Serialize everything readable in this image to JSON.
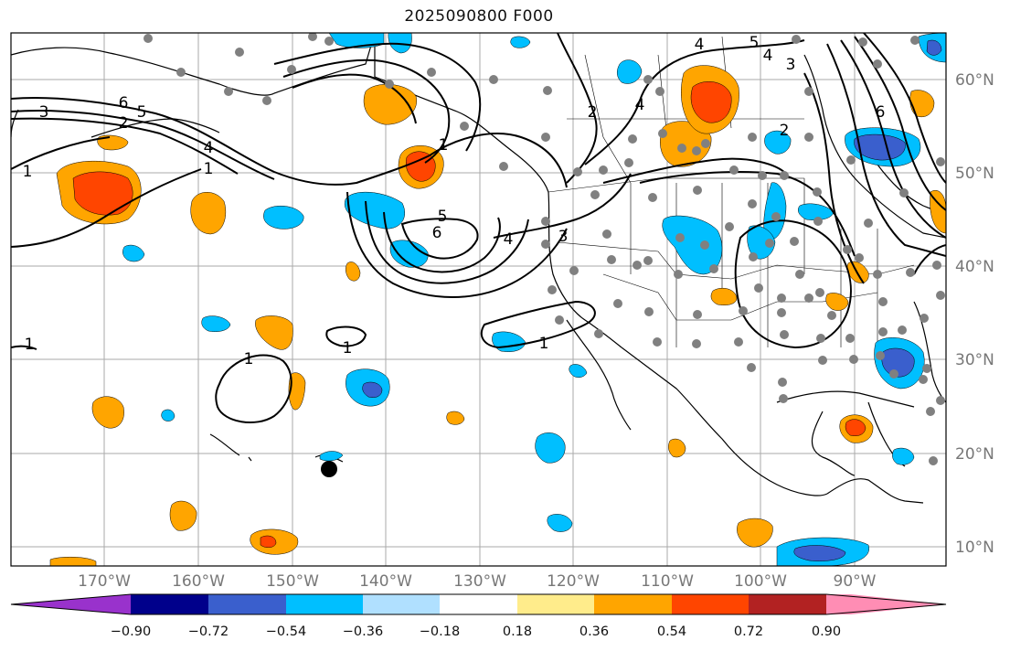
{
  "title": "2025090800 F000",
  "lon_labels": [
    "170°W",
    "160°W",
    "150°W",
    "140°W",
    "130°W",
    "120°W",
    "110°W",
    "100°W",
    "90°W"
  ],
  "lat_labels": [
    "60°N",
    "50°N",
    "40°N",
    "30°N",
    "20°N",
    "10°N"
  ],
  "contour_labels": [
    "1",
    "2",
    "3",
    "4",
    "5",
    "6"
  ],
  "colorbar": {
    "ticks": [
      "−0.90",
      "−0.72",
      "−0.54",
      "−0.36",
      "−0.18",
      "0.18",
      "0.36",
      "0.54",
      "0.72",
      "0.90"
    ],
    "colors": [
      "#9932cc",
      "#00008b",
      "#3a5fcd",
      "#00bfff",
      "#b0e0ff",
      "#ffffff",
      "#ffec8b",
      "#ffa500",
      "#ff4500",
      "#b22222",
      "#ff8db4"
    ]
  },
  "shading_colors": {
    "neg_light": "#00bfff",
    "neg_mid": "#3a5fcd",
    "pos_light": "#ffa500",
    "pos_mid": "#ff4500",
    "pos_edge": "#ffec8b"
  }
}
